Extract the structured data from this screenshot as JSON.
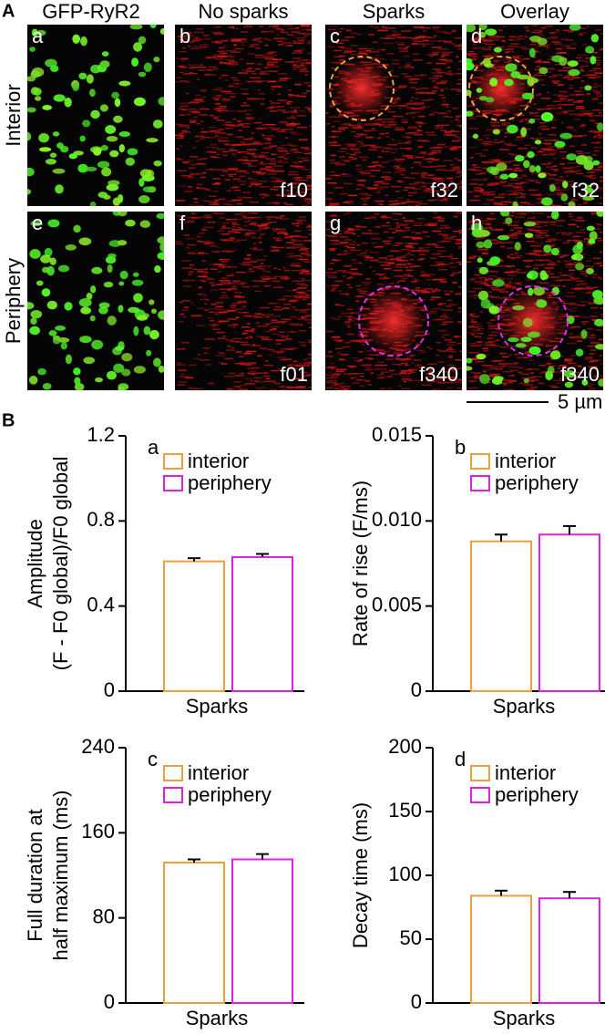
{
  "panel_a": {
    "label": "A",
    "columns": [
      "GFP-RyR2",
      "No sparks",
      "Sparks",
      "Overlay"
    ],
    "rows": [
      "Interior",
      "Periphery"
    ],
    "letters": [
      [
        "a",
        "b",
        "c",
        "d"
      ],
      [
        "e",
        "f",
        "g",
        "h"
      ]
    ],
    "frames": [
      [
        null,
        "f10",
        "f32",
        "f32"
      ],
      [
        null,
        "f01",
        "f340",
        "f340"
      ]
    ],
    "scale_bar": "5 µm"
  },
  "panel_b_label": "B",
  "chart_data": [
    {
      "type": "bar",
      "letter": "a",
      "y_label": [
        "Amplitude",
        "(F - F0 global)/F0 global"
      ],
      "x_label": "Sparks",
      "ylim": [
        0,
        1.2
      ],
      "yticks": [
        0,
        0.4,
        0.8,
        1.2
      ],
      "series": [
        {
          "name": "interior",
          "color": "#eaa040",
          "values": [
            0.61
          ],
          "errors": [
            0.015
          ]
        },
        {
          "name": "periphery",
          "color": "#e020e0",
          "values": [
            0.63
          ],
          "errors": [
            0.015
          ]
        }
      ]
    },
    {
      "type": "bar",
      "letter": "b",
      "y_label": [
        "Rate of rise (F/ms)"
      ],
      "x_label": "Sparks",
      "ylim": [
        0,
        0.015
      ],
      "yticks": [
        0,
        0.005,
        {
          "value": 0.01,
          "label": "0.010"
        },
        0.015
      ],
      "series": [
        {
          "name": "interior",
          "color": "#eaa040",
          "values": [
            0.0088
          ],
          "errors": [
            0.0004
          ]
        },
        {
          "name": "periphery",
          "color": "#e020e0",
          "values": [
            0.0092
          ],
          "errors": [
            0.0005
          ]
        }
      ]
    },
    {
      "type": "bar",
      "letter": "c",
      "y_label": [
        "Full duration at",
        "half maximum (ms)"
      ],
      "x_label": "Sparks",
      "ylim": [
        0,
        240
      ],
      "yticks": [
        0,
        80,
        160,
        240
      ],
      "series": [
        {
          "name": "interior",
          "color": "#eaa040",
          "values": [
            132
          ],
          "errors": [
            3
          ]
        },
        {
          "name": "periphery",
          "color": "#e020e0",
          "values": [
            135
          ],
          "errors": [
            5
          ]
        }
      ]
    },
    {
      "type": "bar",
      "letter": "d",
      "y_label": [
        "Decay time (ms)"
      ],
      "x_label": "Sparks",
      "ylim": [
        0,
        200
      ],
      "yticks": [
        0,
        50,
        100,
        150,
        200
      ],
      "series": [
        {
          "name": "interior",
          "color": "#eaa040",
          "values": [
            84
          ],
          "errors": [
            4
          ]
        },
        {
          "name": "periphery",
          "color": "#e020e0",
          "values": [
            82
          ],
          "errors": [
            5
          ]
        }
      ]
    }
  ]
}
